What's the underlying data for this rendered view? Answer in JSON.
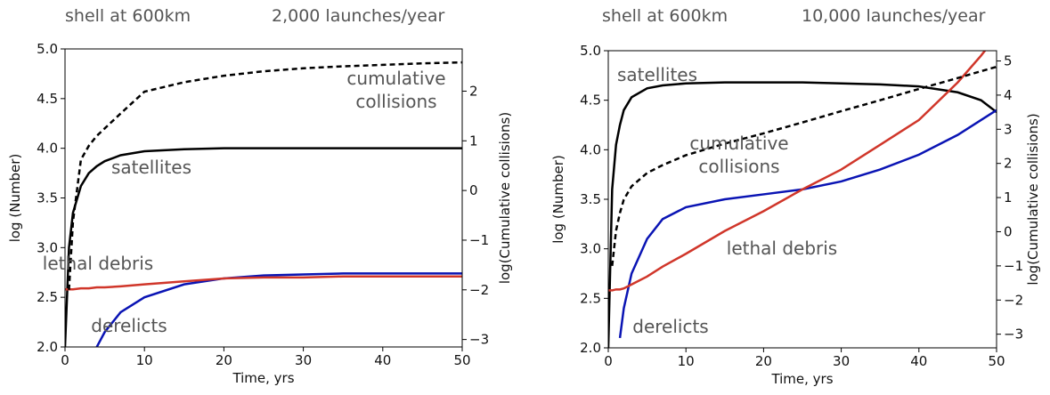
{
  "chart_data": [
    {
      "type": "line",
      "title": "shell at 600km",
      "subtitle": "2,000 launches/year",
      "xlabel": "Time, yrs",
      "ylabel": "log (Number)",
      "y2label": "log(Cumulative collisions)",
      "x": [
        0,
        0.5,
        1,
        2,
        3,
        4,
        5,
        7,
        10,
        15,
        20,
        25,
        30,
        35,
        40,
        45,
        50
      ],
      "xlim": [
        0,
        50
      ],
      "xticks": [
        0,
        10,
        20,
        30,
        40,
        50
      ],
      "ylim": [
        2,
        5
      ],
      "yticks": [
        {
          "value": 2,
          "label": "2.0"
        },
        {
          "value": 2.5,
          "label": "2.5"
        },
        {
          "value": 3,
          "label": "3.0"
        },
        {
          "value": 3.5,
          "label": "3.5"
        },
        {
          "value": 4,
          "label": "4.0"
        },
        {
          "value": 4.5,
          "label": "4.5"
        },
        {
          "value": 5,
          "label": "5.0"
        }
      ],
      "y2lim": [
        -3.15,
        2.85
      ],
      "y2ticks": [
        2,
        1,
        0,
        {
          "value": -1,
          "label": "−1"
        },
        {
          "value": -2,
          "label": "−2"
        },
        {
          "value": -3,
          "label": "−3"
        }
      ],
      "series": [
        {
          "name": "satellites",
          "color": "#000000",
          "values": [
            2.0,
            3.0,
            3.35,
            3.62,
            3.75,
            3.82,
            3.87,
            3.93,
            3.97,
            3.99,
            4.0,
            4.0,
            4.0,
            4.0,
            4.0,
            4.0,
            4.0
          ]
        },
        {
          "name": "derelicts",
          "color": "#0a14b4",
          "values": [
            null,
            null,
            null,
            null,
            null,
            2.0,
            2.15,
            2.35,
            2.5,
            2.63,
            2.69,
            2.72,
            2.73,
            2.74,
            2.74,
            2.74,
            2.74
          ]
        },
        {
          "name": "lethal debris",
          "color": "#d0362a",
          "values": [
            2.58,
            2.58,
            2.58,
            2.59,
            2.59,
            2.6,
            2.6,
            2.61,
            2.63,
            2.66,
            2.69,
            2.7,
            2.7,
            2.71,
            2.71,
            2.71,
            2.71
          ]
        },
        {
          "name": "cumulative collisions",
          "color": "#000000",
          "dashed": true,
          "axis": "y2",
          "values": [
            null,
            -2.0,
            -0.63,
            0.62,
            0.9,
            1.1,
            1.25,
            1.55,
            1.99,
            2.18,
            2.31,
            2.4,
            2.46,
            2.5,
            2.53,
            2.56,
            2.58
          ]
        }
      ]
    },
    {
      "type": "line",
      "title": "shell at 600km",
      "subtitle": "10,000 launches/year",
      "xlabel": "Time, yrs",
      "ylabel": "log (Number)",
      "y2label": "log(Cumulative collisions)",
      "x": [
        0,
        0.5,
        1,
        1.5,
        2,
        3,
        5,
        7,
        10,
        15,
        20,
        25,
        30,
        35,
        40,
        45,
        48,
        50
      ],
      "xlim": [
        0,
        50
      ],
      "xticks": [
        0,
        10,
        20,
        30,
        40,
        50
      ],
      "ylim": [
        2,
        5
      ],
      "yticks": [
        {
          "value": 2,
          "label": "2.0"
        },
        {
          "value": 2.5,
          "label": "2.5"
        },
        {
          "value": 3,
          "label": "3.0"
        },
        {
          "value": 3.5,
          "label": "3.5"
        },
        {
          "value": 4,
          "label": "4.0"
        },
        {
          "value": 4.5,
          "label": "4.5"
        },
        {
          "value": 5,
          "label": "5.0"
        }
      ],
      "y2lim": [
        -3.4,
        5.3
      ],
      "y2ticks": [
        5,
        4,
        3,
        2,
        1,
        0,
        {
          "value": -1,
          "label": "−1"
        },
        {
          "value": -2,
          "label": "−2"
        },
        {
          "value": -3,
          "label": "−3"
        }
      ],
      "series": [
        {
          "name": "satellites",
          "color": "#000000",
          "values": [
            2.0,
            3.6,
            4.05,
            4.25,
            4.4,
            4.53,
            4.62,
            4.65,
            4.67,
            4.68,
            4.68,
            4.68,
            4.67,
            4.66,
            4.64,
            4.58,
            4.5,
            4.38
          ]
        },
        {
          "name": "derelicts",
          "color": "#0a14b4",
          "values": [
            null,
            null,
            null,
            2.1,
            2.4,
            2.75,
            3.1,
            3.3,
            3.42,
            3.5,
            3.55,
            3.6,
            3.68,
            3.8,
            3.95,
            4.15,
            4.3,
            4.4
          ]
        },
        {
          "name": "lethal debris",
          "color": "#d0362a",
          "values": [
            2.58,
            2.58,
            2.59,
            2.59,
            2.6,
            2.64,
            2.72,
            2.82,
            2.95,
            3.18,
            3.38,
            3.6,
            3.8,
            4.05,
            4.3,
            4.68,
            4.95,
            5.15
          ]
        },
        {
          "name": "cumulative collisions",
          "color": "#000000",
          "dashed": true,
          "axis": "y2",
          "values": [
            null,
            -1.0,
            0.03,
            0.55,
            0.94,
            1.33,
            1.72,
            1.95,
            2.24,
            2.58,
            2.88,
            3.2,
            3.53,
            3.85,
            4.18,
            4.5,
            4.7,
            4.83
          ]
        }
      ]
    }
  ]
}
